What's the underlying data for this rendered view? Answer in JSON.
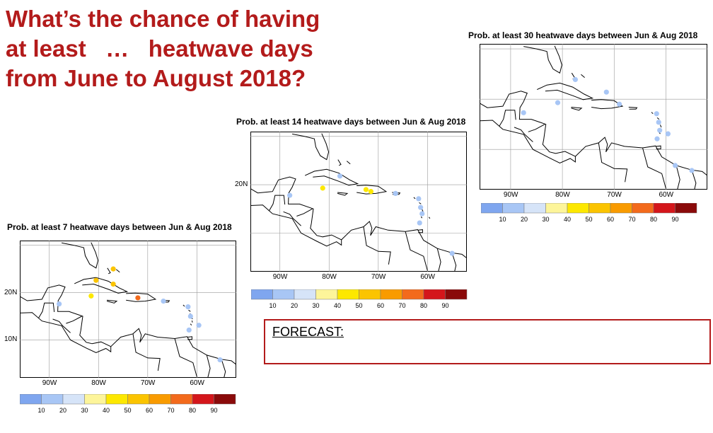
{
  "slide": {
    "title_lines": [
      "What’s the chance of having",
      "at least   …   heatwave days",
      "from June to August 2018?"
    ]
  },
  "colors": {
    "title_red": "#b31b1b",
    "land": "#ffffff",
    "coast": "#000000",
    "scale": [
      "#7fa6ef",
      "#a8c6f5",
      "#d6e4f8",
      "#fdf59a",
      "#fde800",
      "#fbc400",
      "#f99b00",
      "#f36a1c",
      "#d4161b",
      "#8a0a0a"
    ]
  },
  "panels": [
    {
      "id": "p30",
      "title": "Prob. at least 30 heatwave days between Jun & Aug 2018",
      "lon_labels": [
        "90W",
        "80W",
        "70W",
        "60W"
      ],
      "lat_labels": [],
      "colorbar_ticks": [
        "10",
        "20",
        "30",
        "40",
        "50",
        "60",
        "70",
        "80",
        "90"
      ],
      "hotspots": [
        {
          "lon": -77.5,
          "lat": 23.9,
          "prob": 10
        },
        {
          "lon": -71.5,
          "lat": 21.4,
          "prob": 10
        },
        {
          "lon": -69.0,
          "lat": 19.0,
          "prob": 10
        },
        {
          "lon": -80.9,
          "lat": 19.3,
          "prob": 10
        },
        {
          "lon": -87.5,
          "lat": 17.3,
          "prob": 10
        },
        {
          "lon": -61.8,
          "lat": 17.1,
          "prob": 10
        },
        {
          "lon": -61.4,
          "lat": 15.4,
          "prob": 10
        },
        {
          "lon": -61.2,
          "lat": 13.8,
          "prob": 10
        },
        {
          "lon": -59.6,
          "lat": 13.1,
          "prob": 10
        },
        {
          "lon": -61.7,
          "lat": 12.1,
          "prob": 10
        },
        {
          "lon": -55.0,
          "lat": 5.8,
          "prob": 10
        },
        {
          "lon": -58.2,
          "lat": 6.8,
          "prob": 10
        }
      ]
    },
    {
      "id": "p14",
      "title": "Prob. at least 14 heatwave days between Jun & Aug 2018",
      "lon_labels": [
        "90W",
        "80W",
        "70W",
        "60W"
      ],
      "lat_labels": [
        "20N"
      ],
      "colorbar_ticks": [
        "10",
        "20",
        "30",
        "40",
        "50",
        "60",
        "70",
        "80",
        "90"
      ],
      "hotspots": [
        {
          "lon": -77.8,
          "lat": 21.8,
          "prob": 10
        },
        {
          "lon": -81.3,
          "lat": 19.3,
          "prob": 40
        },
        {
          "lon": -72.5,
          "lat": 19.0,
          "prob": 40
        },
        {
          "lon": -71.5,
          "lat": 18.6,
          "prob": 40
        },
        {
          "lon": -66.5,
          "lat": 18.2,
          "prob": 10
        },
        {
          "lon": -88.0,
          "lat": 17.8,
          "prob": 10
        },
        {
          "lon": -61.8,
          "lat": 17.1,
          "prob": 10
        },
        {
          "lon": -61.4,
          "lat": 15.3,
          "prob": 10
        },
        {
          "lon": -61.1,
          "lat": 14.0,
          "prob": 10
        },
        {
          "lon": -61.6,
          "lat": 12.1,
          "prob": 10
        },
        {
          "lon": -55.0,
          "lat": 5.8,
          "prob": 10
        }
      ]
    },
    {
      "id": "p7",
      "title": "Prob. at least  7 heatwave days between Jun & Aug 2018",
      "lon_labels": [
        "90W",
        "80W",
        "70W",
        "60W"
      ],
      "lat_labels": [
        "20N",
        "10N"
      ],
      "colorbar_ticks": [
        "10",
        "20",
        "30",
        "40",
        "50",
        "60",
        "70",
        "80",
        "90"
      ],
      "hotspots": [
        {
          "lon": -77.0,
          "lat": 25.0,
          "prob": 50
        },
        {
          "lon": -80.5,
          "lat": 22.6,
          "prob": 50
        },
        {
          "lon": -77.0,
          "lat": 21.8,
          "prob": 50
        },
        {
          "lon": -81.5,
          "lat": 19.3,
          "prob": 40
        },
        {
          "lon": -72.0,
          "lat": 18.9,
          "prob": 70
        },
        {
          "lon": -88.0,
          "lat": 17.6,
          "prob": 10
        },
        {
          "lon": -66.8,
          "lat": 18.2,
          "prob": 10
        },
        {
          "lon": -61.8,
          "lat": 17.0,
          "prob": 10
        },
        {
          "lon": -61.3,
          "lat": 15.0,
          "prob": 10
        },
        {
          "lon": -59.6,
          "lat": 13.1,
          "prob": 10
        },
        {
          "lon": -61.6,
          "lat": 12.1,
          "prob": 10
        },
        {
          "lon": -55.3,
          "lat": 5.8,
          "prob": 10
        }
      ]
    }
  ],
  "forecast": {
    "label": "FORECAST:"
  }
}
